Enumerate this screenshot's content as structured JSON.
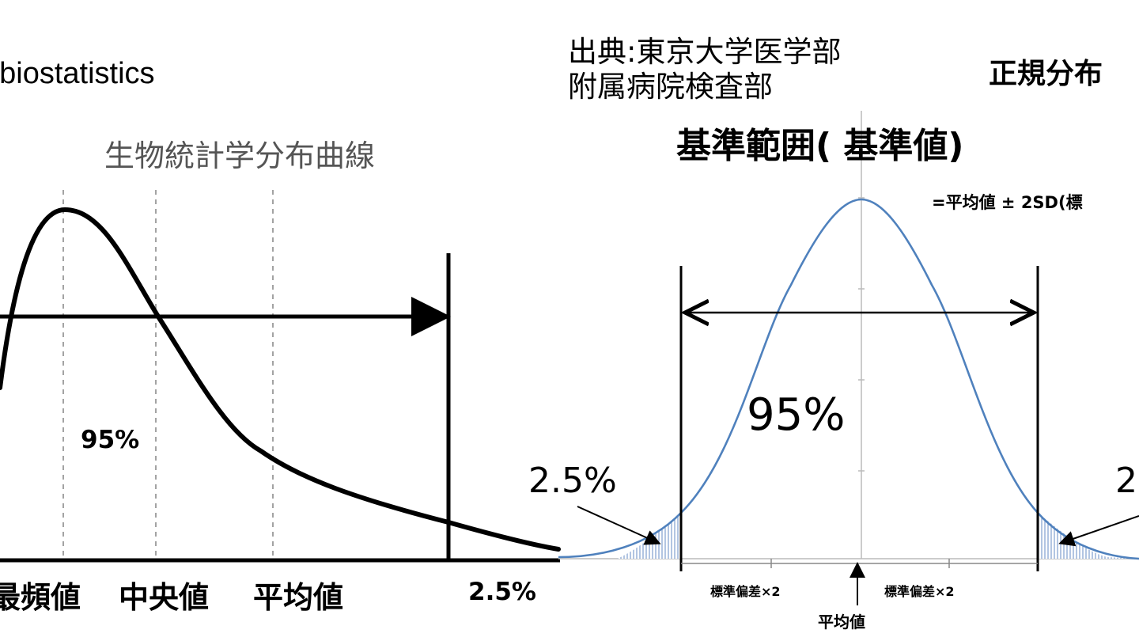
{
  "left_panel": {
    "header_text": ": biostatistics",
    "title": "生物統計学分布曲線",
    "percent_label": "95%",
    "tail_label": "2.5%",
    "axis_labels": {
      "mode": "最頻値",
      "median": "中央値",
      "mean": "平均値"
    }
  },
  "right_panel": {
    "source": "出典:東京大学医学部\n附属病院検査部",
    "heading": "正規分布",
    "title": "基準範囲(  基準値)",
    "formula": "=平均値 ± 2SD(標",
    "center_label": "95%",
    "tail_left": "2.5%",
    "tail_right": "2",
    "sd_left": "標準偏差×2",
    "sd_right": "標準偏差×2",
    "mean_label": "平均値"
  },
  "colors": {
    "left_curve": "#000000",
    "normal_curve": "#4f81bd",
    "tail_fill": "#9ab3d9",
    "text": "#000000",
    "title_gray": "#555555"
  }
}
